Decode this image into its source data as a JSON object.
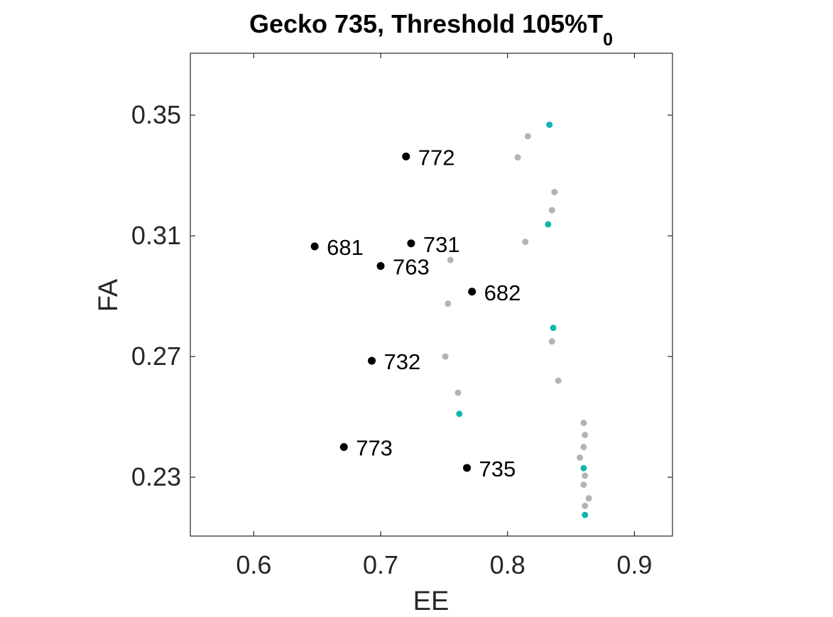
{
  "chart_data": {
    "type": "scatter",
    "title": "Gecko 735, Threshold 105%T",
    "title_subscript": "0",
    "xlabel": "EE",
    "ylabel": "FA",
    "xlim": [
      0.55,
      0.93
    ],
    "ylim": [
      0.2105,
      0.3705
    ],
    "xticks": [
      0.6,
      0.7,
      0.8,
      0.9
    ],
    "xtick_labels": [
      "0.6",
      "0.7",
      "0.8",
      "0.9"
    ],
    "yticks": [
      0.23,
      0.27,
      0.31,
      0.35
    ],
    "ytick_labels": [
      "0.23",
      "0.27",
      "0.31",
      "0.35"
    ],
    "grid": false,
    "colors": {
      "labeled": "#000000",
      "gray": "#b3b3b3",
      "teal": "#12b5b0",
      "axis": "#262626"
    },
    "series": [
      {
        "role": "labeled",
        "points": [
          {
            "x": 0.72,
            "y": 0.3363,
            "label": "772"
          },
          {
            "x": 0.648,
            "y": 0.3065,
            "label": "681"
          },
          {
            "x": 0.724,
            "y": 0.3075,
            "label": "731"
          },
          {
            "x": 0.7,
            "y": 0.3,
            "label": "763"
          },
          {
            "x": 0.772,
            "y": 0.2915,
            "label": "682"
          },
          {
            "x": 0.693,
            "y": 0.2686,
            "label": "732"
          },
          {
            "x": 0.671,
            "y": 0.24,
            "label": "773"
          },
          {
            "x": 0.768,
            "y": 0.2331,
            "label": "735"
          }
        ]
      },
      {
        "role": "gray",
        "points": [
          {
            "x": 0.816,
            "y": 0.343
          },
          {
            "x": 0.808,
            "y": 0.336
          },
          {
            "x": 0.837,
            "y": 0.3245
          },
          {
            "x": 0.835,
            "y": 0.3185
          },
          {
            "x": 0.814,
            "y": 0.308
          },
          {
            "x": 0.755,
            "y": 0.302
          },
          {
            "x": 0.753,
            "y": 0.2875
          },
          {
            "x": 0.835,
            "y": 0.275
          },
          {
            "x": 0.751,
            "y": 0.27
          },
          {
            "x": 0.84,
            "y": 0.262
          },
          {
            "x": 0.761,
            "y": 0.258
          },
          {
            "x": 0.86,
            "y": 0.248
          },
          {
            "x": 0.861,
            "y": 0.244
          },
          {
            "x": 0.86,
            "y": 0.24
          },
          {
            "x": 0.857,
            "y": 0.2365
          },
          {
            "x": 0.861,
            "y": 0.2305
          },
          {
            "x": 0.86,
            "y": 0.2275
          },
          {
            "x": 0.864,
            "y": 0.223
          },
          {
            "x": 0.861,
            "y": 0.2205
          }
        ]
      },
      {
        "role": "teal",
        "points": [
          {
            "x": 0.833,
            "y": 0.3468
          },
          {
            "x": 0.832,
            "y": 0.3138
          },
          {
            "x": 0.836,
            "y": 0.2795
          },
          {
            "x": 0.762,
            "y": 0.251
          },
          {
            "x": 0.86,
            "y": 0.233
          },
          {
            "x": 0.861,
            "y": 0.2175
          }
        ]
      }
    ]
  }
}
